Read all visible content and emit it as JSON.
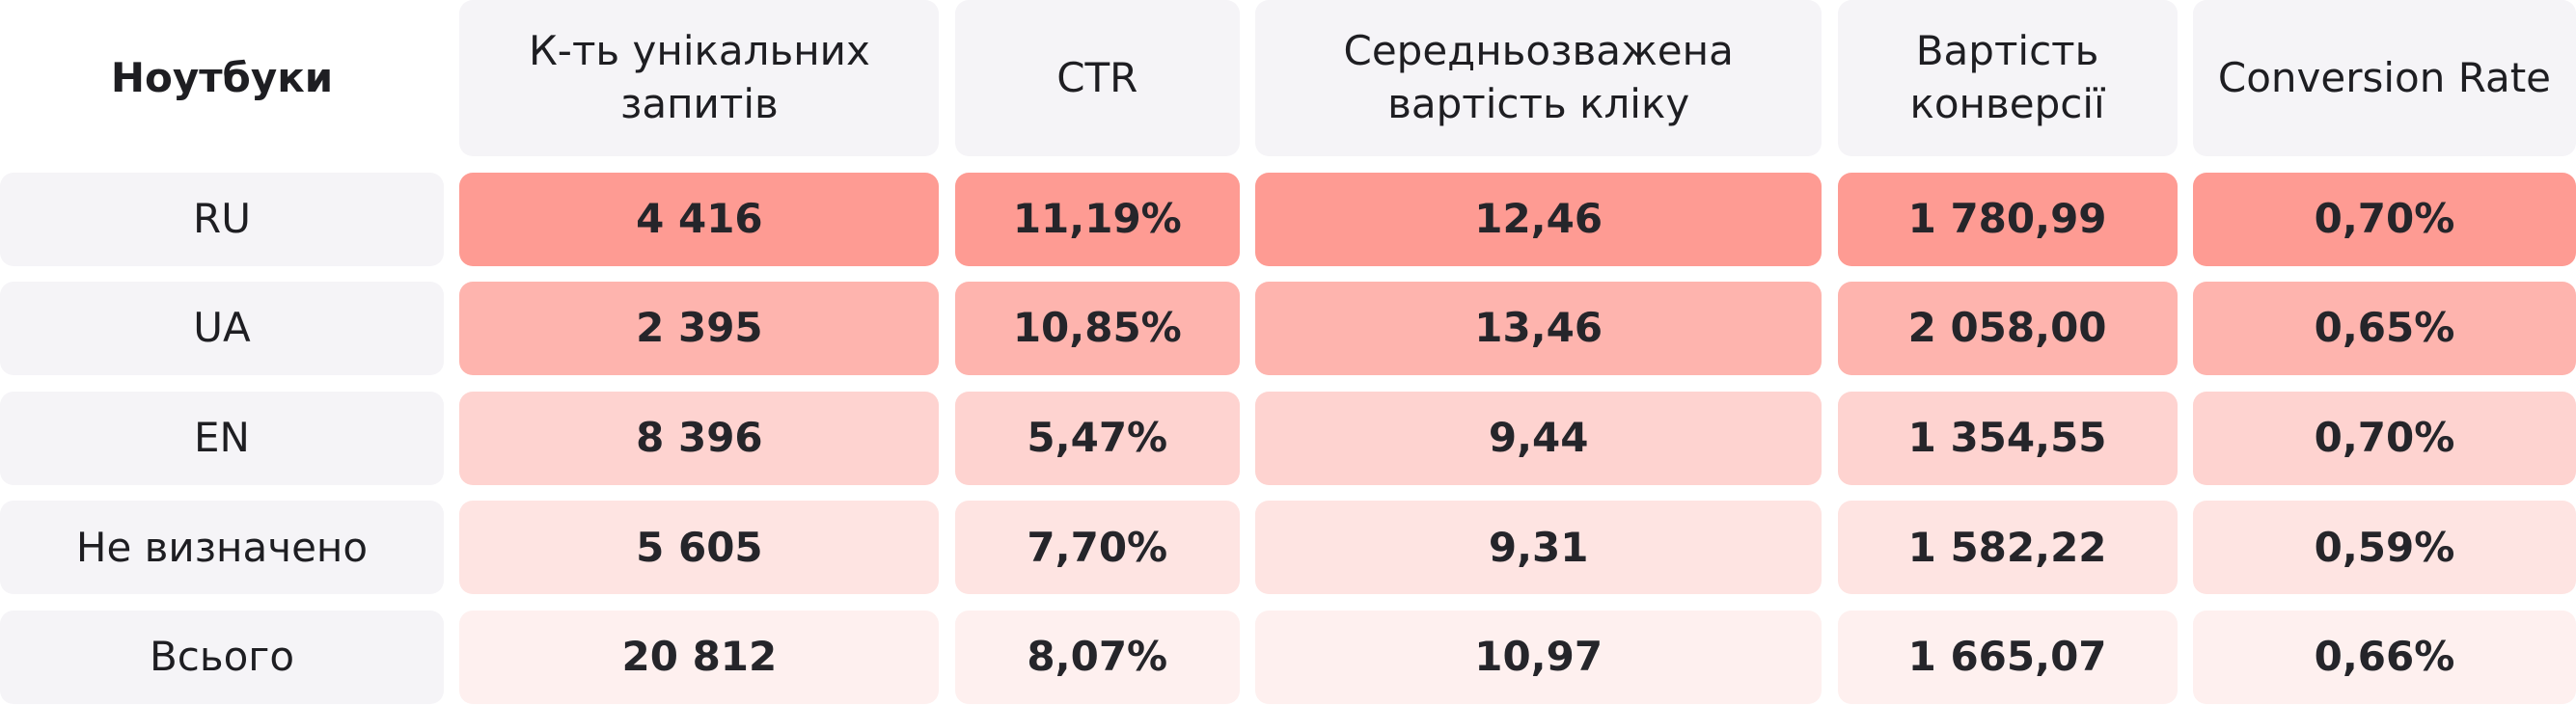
{
  "table": {
    "corner": "Ноутбуки",
    "columns": [
      "К-ть унікальних запитів",
      "CTR",
      "Середньозважена вартість кліку",
      "Вартість конверсії",
      "Conversion Rate"
    ],
    "rows": [
      {
        "label": "RU",
        "cells": [
          "4 416",
          "11,19%",
          "12,46",
          "1 780,99",
          "0,70%"
        ]
      },
      {
        "label": "UA",
        "cells": [
          "2 395",
          "10,85%",
          "13,46",
          "2 058,00",
          "0,65%"
        ]
      },
      {
        "label": "EN",
        "cells": [
          "8 396",
          "5,47%",
          "9,44",
          "1 354,55",
          "0,70%"
        ]
      },
      {
        "label": "Не визначено",
        "cells": [
          "5 605",
          "7,70%",
          "9,31",
          "1 582,22",
          "0,59%"
        ]
      },
      {
        "label": "Всього",
        "cells": [
          "20 812",
          "8,07%",
          "10,97",
          "1 665,07",
          "0,66%"
        ]
      }
    ]
  }
}
